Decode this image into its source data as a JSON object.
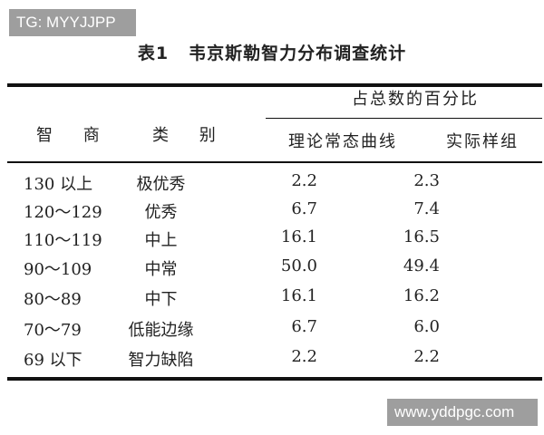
{
  "watermarks": {
    "top_left": "TG: MYYJJPP",
    "bottom_right": "www.yddpgc.com"
  },
  "table": {
    "number": "表1",
    "title": "韦京斯勒智力分布调查统计",
    "headers": {
      "iq": "智 商",
      "category": "类 别",
      "percent_group": "占总数的百分比",
      "theoretical": "理论常态曲线",
      "actual": "实际样组"
    },
    "rows": [
      {
        "iq": "130 以上",
        "category": "极优秀",
        "theoretical": "2.2",
        "actual": "2.3"
      },
      {
        "iq": "120～129",
        "category": "优秀",
        "theoretical": "6.7",
        "actual": "7.4"
      },
      {
        "iq": "110～119",
        "category": "中上",
        "theoretical": "16.1",
        "actual": "16.5"
      },
      {
        "iq": "90～109",
        "category": "中常",
        "theoretical": "50.0",
        "actual": "49.4"
      },
      {
        "iq": "80～89",
        "category": "中下",
        "theoretical": "16.1",
        "actual": "16.2"
      },
      {
        "iq": "70～79",
        "category": "低能边缘",
        "theoretical": "6.7",
        "actual": "6.0"
      },
      {
        "iq": "69 以下",
        "category": "智力缺陷",
        "theoretical": "2.2",
        "actual": "2.2"
      }
    ]
  }
}
